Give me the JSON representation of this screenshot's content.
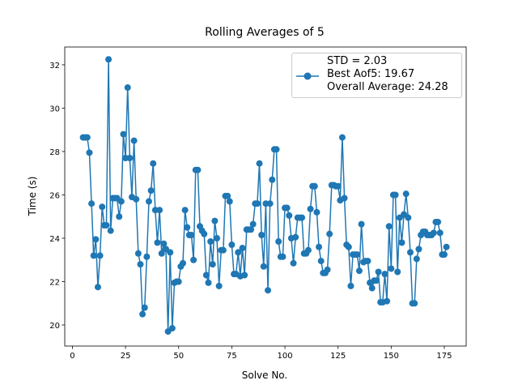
{
  "chart_data": {
    "type": "line",
    "title": "Rolling Averages of 5",
    "x_label": "Solve No.",
    "y_label": "Time (s)",
    "x": [
      5,
      6,
      7,
      8,
      9,
      10,
      11,
      12,
      13,
      14,
      15,
      16,
      17,
      18,
      19,
      20,
      21,
      22,
      23,
      24,
      25,
      26,
      27,
      28,
      29,
      30,
      31,
      32,
      33,
      34,
      35,
      36,
      37,
      38,
      39,
      40,
      41,
      42,
      43,
      44,
      45,
      46,
      47,
      48,
      49,
      50,
      51,
      52,
      53,
      54,
      55,
      56,
      57,
      58,
      59,
      60,
      61,
      62,
      63,
      64,
      65,
      66,
      67,
      68,
      69,
      70,
      71,
      72,
      73,
      74,
      75,
      76,
      77,
      78,
      79,
      80,
      81,
      82,
      83,
      84,
      85,
      86,
      87,
      88,
      89,
      90,
      91,
      92,
      93,
      94,
      95,
      96,
      97,
      98,
      99,
      100,
      101,
      102,
      103,
      104,
      105,
      106,
      107,
      108,
      109,
      110,
      111,
      112,
      113,
      114,
      115,
      116,
      117,
      118,
      119,
      120,
      121,
      122,
      123,
      124,
      125,
      126,
      127,
      128,
      129,
      130,
      131,
      132,
      133,
      134,
      135,
      136,
      137,
      138,
      139,
      140,
      141,
      142,
      143,
      144,
      145,
      146,
      147,
      148,
      149,
      150,
      151,
      152,
      153,
      154,
      155,
      156,
      157,
      158,
      159,
      160,
      161,
      162,
      163,
      164,
      165,
      166,
      167,
      168,
      169,
      170,
      171,
      172,
      173,
      174,
      175,
      176
    ],
    "series": [
      {
        "name": "STD = 2.03\nBest Aof5: 19.67\nOverall Average: 24.28",
        "color": "#1f77b4",
        "values": [
          28.65,
          28.65,
          28.65,
          27.95,
          25.6,
          23.2,
          23.95,
          21.75,
          23.2,
          25.45,
          24.6,
          24.6,
          32.25,
          24.35,
          25.85,
          25.85,
          25.85,
          25.0,
          25.7,
          28.8,
          27.7,
          30.95,
          27.7,
          25.9,
          28.5,
          25.8,
          23.3,
          22.8,
          20.5,
          20.8,
          23.15,
          25.7,
          26.2,
          27.45,
          25.3,
          23.8,
          25.3,
          23.3,
          23.75,
          23.5,
          19.7,
          23.35,
          19.85,
          21.95,
          22.0,
          22.0,
          22.7,
          22.85,
          25.3,
          24.5,
          24.15,
          24.15,
          23.0,
          27.15,
          27.15,
          24.55,
          24.35,
          24.2,
          22.3,
          21.95,
          23.85,
          22.8,
          24.8,
          24.0,
          21.8,
          23.45,
          23.45,
          25.95,
          25.95,
          25.7,
          23.7,
          22.35,
          22.35,
          23.35,
          22.25,
          23.55,
          22.3,
          24.4,
          24.4,
          24.4,
          24.65,
          25.6,
          25.6,
          27.45,
          24.15,
          22.7,
          25.6,
          21.6,
          25.6,
          26.7,
          28.1,
          28.1,
          23.85,
          23.15,
          23.15,
          25.4,
          25.4,
          25.05,
          24.0,
          22.85,
          24.05,
          24.95,
          24.95,
          24.95,
          23.3,
          23.3,
          23.45,
          25.35,
          26.4,
          26.4,
          25.2,
          23.6,
          22.95,
          22.4,
          22.4,
          22.55,
          24.2,
          26.45,
          26.45,
          26.4,
          26.4,
          25.75,
          28.65,
          25.85,
          23.7,
          23.6,
          21.8,
          23.25,
          23.25,
          23.25,
          22.5,
          24.65,
          22.9,
          22.95,
          22.95,
          21.95,
          21.7,
          22.05,
          22.05,
          22.45,
          21.05,
          21.05,
          22.35,
          21.1,
          24.55,
          22.6,
          26.0,
          26.0,
          22.45,
          24.95,
          23.8,
          25.1,
          26.05,
          24.95,
          23.35,
          21.0,
          21.0,
          23.05,
          23.5,
          24.15,
          24.3,
          24.3,
          24.15,
          24.15,
          24.15,
          24.25,
          24.75,
          24.75,
          24.25,
          23.25,
          23.25,
          23.6
        ]
      }
    ],
    "xlim": [
      -3.6,
      185.3
    ],
    "ylim": [
      19.03,
      32.82
    ],
    "xticks": [
      0,
      25,
      50,
      75,
      100,
      125,
      150,
      175
    ],
    "yticks": [
      20,
      22,
      24,
      26,
      28,
      30,
      32
    ],
    "legend": "upper right",
    "grid": false
  }
}
